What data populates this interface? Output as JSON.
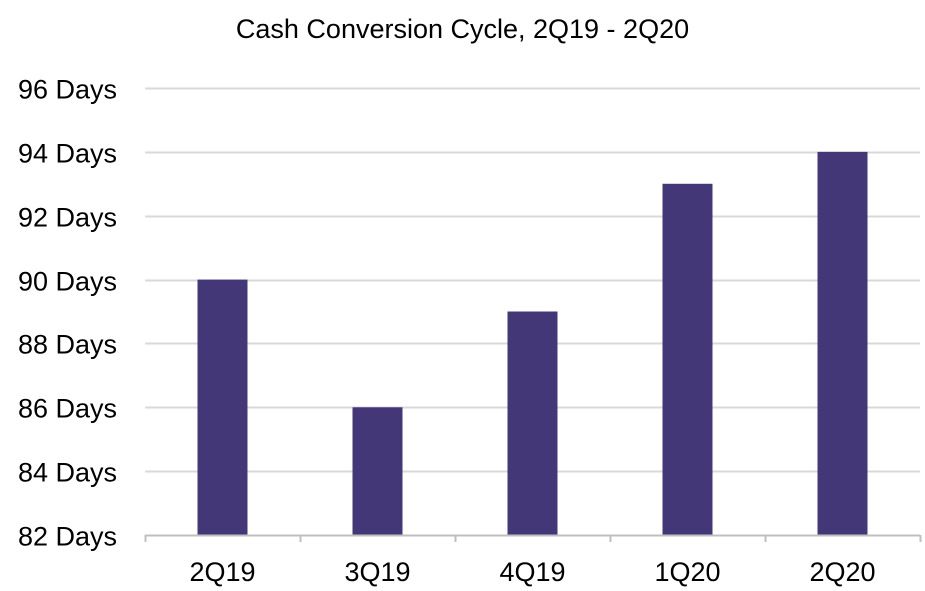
{
  "chart_data": {
    "type": "bar",
    "title": "Cash Conversion Cycle, 2Q19 - 2Q20",
    "categories": [
      "2Q19",
      "3Q19",
      "4Q19",
      "1Q20",
      "2Q20"
    ],
    "values": [
      90,
      86,
      89,
      93,
      94
    ],
    "ylim": [
      82,
      96
    ],
    "yticks": [
      82,
      84,
      86,
      88,
      90,
      92,
      94,
      96
    ],
    "ytick_labels": [
      "82 Days",
      "84 Days",
      "86 Days",
      "88 Days",
      "90 Days",
      "92 Days",
      "94 Days",
      "96 Days"
    ],
    "xlabel": "",
    "ylabel": "",
    "grid": true,
    "legend": "none",
    "colors": {
      "bar": "#433778",
      "grid": "#d9d9d9",
      "axis": "#bfbfbf"
    }
  }
}
